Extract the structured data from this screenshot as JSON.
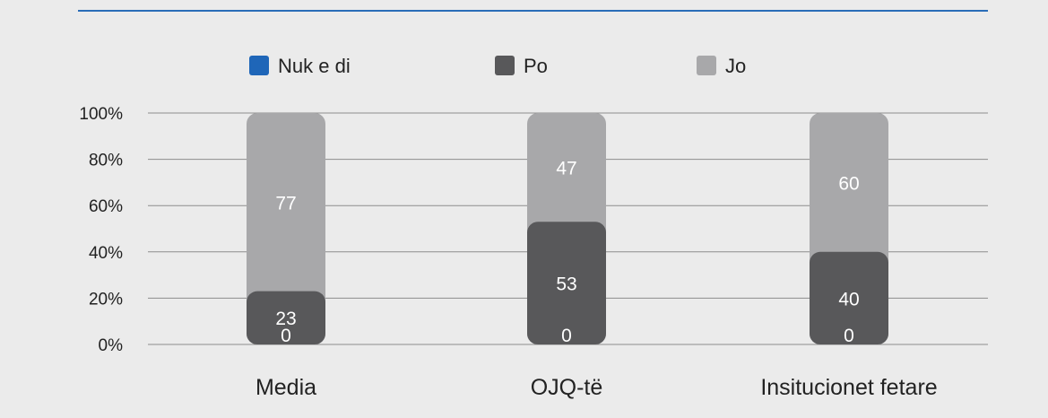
{
  "colors": {
    "background": "#ebebeb",
    "top_rule": "#2a6db8",
    "grid": "#8c8c8c"
  },
  "chart_data": {
    "type": "bar",
    "stacked": true,
    "percent": true,
    "categories": [
      "Media",
      "OJQ-të",
      "Insitucionet fetare"
    ],
    "series": [
      {
        "name": "Nuk e di",
        "color": "#1f66b8",
        "values": [
          0,
          0,
          0
        ]
      },
      {
        "name": "Po",
        "color": "#58585a",
        "values": [
          23,
          53,
          40
        ]
      },
      {
        "name": "Jo",
        "color": "#a8a8aa",
        "values": [
          77,
          47,
          60
        ]
      }
    ],
    "ylim": [
      0,
      100
    ],
    "yticks": [
      "0%",
      "20%",
      "40%",
      "60%",
      "80%",
      "100%"
    ],
    "grid": true,
    "legend": "top"
  }
}
